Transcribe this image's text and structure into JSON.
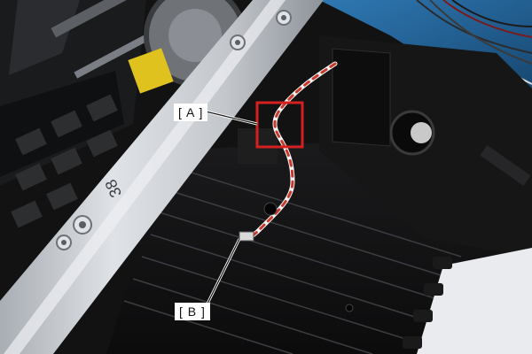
{
  "figure": {
    "callout_a": "[ A ]",
    "callout_b": "[ B ]",
    "panel_marking": "38",
    "colors": {
      "highlight_box": "#d42020",
      "cable_red": "#c8392b",
      "cable_white": "#f2f2f2",
      "frame_metal": "#c9cdd2",
      "interior_black": "#141414",
      "blue_mat": "#1f5a8c"
    },
    "icons": [
      "screw-head",
      "cable-connector",
      "shaft-hole"
    ]
  }
}
